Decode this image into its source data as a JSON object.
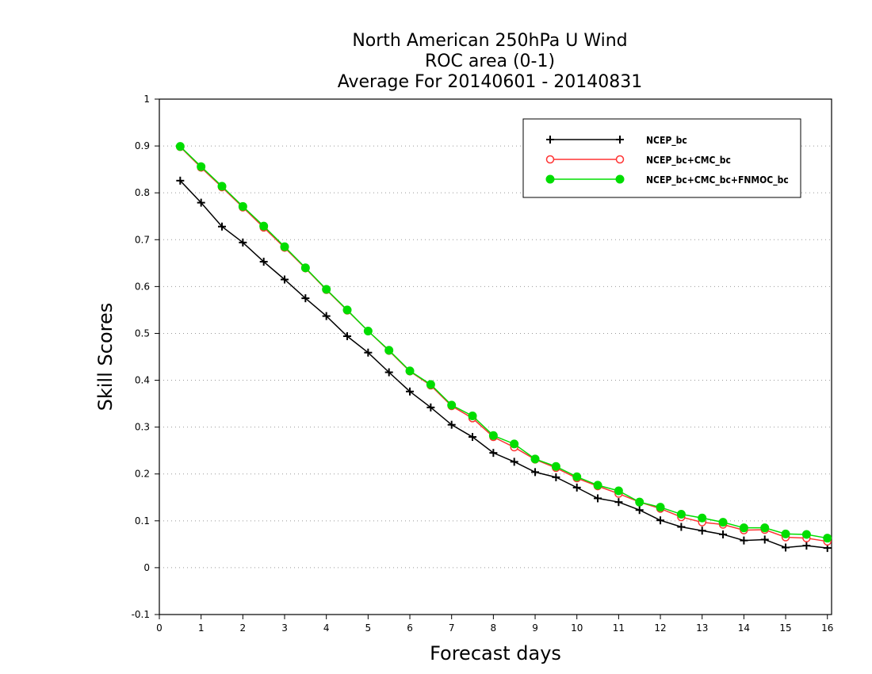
{
  "chart_data": {
    "type": "line",
    "title": [
      "North American 250hPa U Wind",
      "ROC area (0-1)",
      "Average For 20140601 - 20140831"
    ],
    "xlabel": "Forecast days",
    "ylabel": "Skill Scores",
    "xlim": [
      0,
      16.1
    ],
    "ylim": [
      -0.1,
      1
    ],
    "x_ticks": [
      "0",
      "1",
      "2",
      "3",
      "4",
      "5",
      "6",
      "7",
      "8",
      "9",
      "10",
      "11",
      "12",
      "13",
      "14",
      "15",
      "16"
    ],
    "y_ticks": [
      "-0.1",
      "0",
      "0.1",
      "0.2",
      "0.3",
      "0.4",
      "0.5",
      "0.6",
      "0.7",
      "0.8",
      "0.9",
      "1"
    ],
    "grid": "horizontal-dotted",
    "legend_position": "top-right",
    "x": [
      0.5,
      1,
      1.5,
      2,
      2.5,
      3,
      3.5,
      4,
      4.5,
      5,
      5.5,
      6,
      6.5,
      7,
      7.5,
      8,
      8.5,
      9,
      9.5,
      10,
      10.5,
      11,
      11.5,
      12,
      12.5,
      13,
      13.5,
      14,
      14.5,
      15,
      15.5,
      16
    ],
    "series": [
      {
        "name": "NCEP_bc",
        "color": "#000000",
        "marker": "plus",
        "values": [
          0.826,
          0.779,
          0.728,
          0.694,
          0.653,
          0.615,
          0.575,
          0.537,
          0.494,
          0.459,
          0.417,
          0.376,
          0.342,
          0.305,
          0.279,
          0.245,
          0.226,
          0.204,
          0.193,
          0.171,
          0.148,
          0.14,
          0.123,
          0.101,
          0.087,
          0.079,
          0.071,
          0.058,
          0.06,
          0.043,
          0.047,
          0.042
        ]
      },
      {
        "name": "NCEP_bc+CMC_bc",
        "color": "#ff3333",
        "marker": "open-circle",
        "values": [
          0.898,
          0.854,
          0.812,
          0.769,
          0.726,
          0.683,
          0.639,
          0.593,
          0.549,
          0.505,
          0.463,
          0.419,
          0.389,
          0.345,
          0.319,
          0.279,
          0.257,
          0.231,
          0.213,
          0.191,
          0.174,
          0.158,
          0.14,
          0.126,
          0.108,
          0.097,
          0.092,
          0.08,
          0.081,
          0.065,
          0.063,
          0.056
        ]
      },
      {
        "name": "NCEP_bc+CMC_bc+FNMOC_bc",
        "color": "#00dd00",
        "marker": "filled-circle",
        "values": [
          0.899,
          0.856,
          0.814,
          0.771,
          0.729,
          0.685,
          0.64,
          0.594,
          0.55,
          0.505,
          0.464,
          0.42,
          0.391,
          0.347,
          0.324,
          0.282,
          0.264,
          0.232,
          0.216,
          0.194,
          0.176,
          0.164,
          0.14,
          0.129,
          0.114,
          0.106,
          0.097,
          0.085,
          0.085,
          0.072,
          0.071,
          0.063
        ]
      }
    ]
  }
}
